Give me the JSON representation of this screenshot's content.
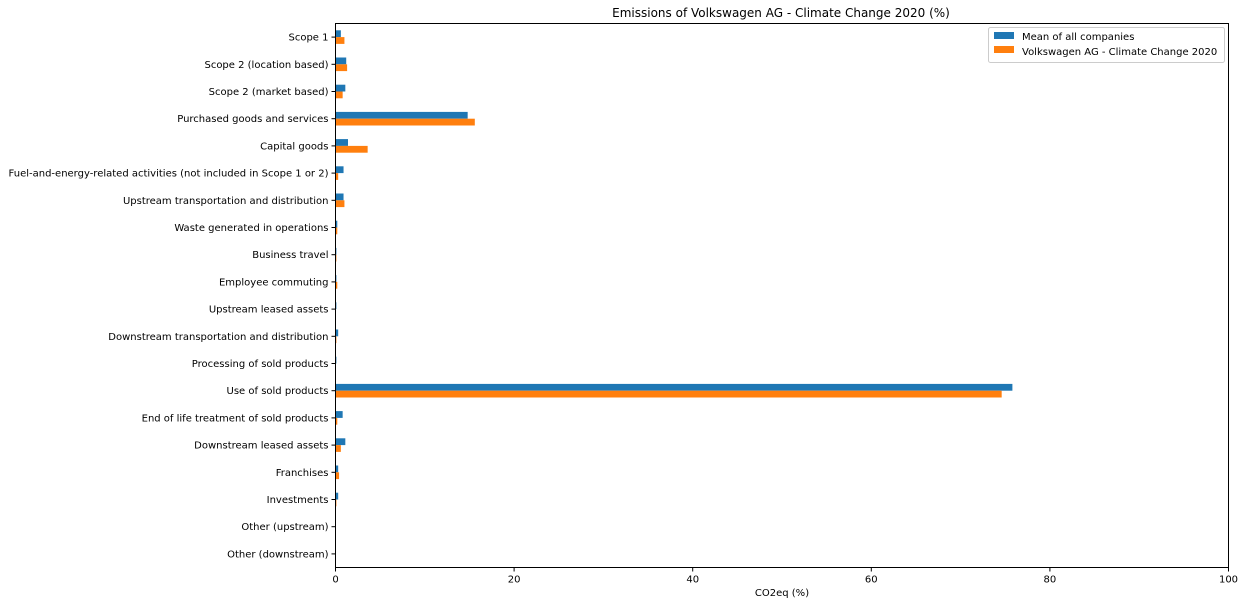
{
  "chart_data": {
    "type": "bar",
    "orientation": "horizontal",
    "title": "Emissions of Volkswagen AG - Climate Change 2020 (%)",
    "xlabel": "CO2eq (%)",
    "ylabel": "",
    "xlim": [
      0,
      100
    ],
    "xticks": [
      0,
      20,
      40,
      60,
      80,
      100
    ],
    "grid": false,
    "legend_position": "top-right",
    "categories": [
      "Scope 1",
      "Scope 2 (location based)",
      "Scope 2 (market based)",
      "Purchased goods and services",
      "Capital goods",
      "Fuel-and-energy-related activities (not included in Scope 1 or 2)",
      "Upstream transportation and distribution",
      "Waste generated in operations",
      "Business travel",
      "Employee commuting",
      "Upstream leased assets",
      "Downstream transportation and distribution",
      "Processing of sold products",
      "Use of sold products",
      "End of life treatment of sold products",
      "Downstream leased assets",
      "Franchises",
      "Investments",
      "Other (upstream)",
      "Other (downstream)"
    ],
    "series": [
      {
        "name": "Mean of all companies",
        "color": "#1f77b4",
        "values": [
          0.6,
          1.2,
          1.1,
          14.8,
          1.4,
          0.9,
          0.9,
          0.2,
          0.1,
          0.1,
          0.1,
          0.3,
          0.1,
          75.8,
          0.8,
          1.1,
          0.3,
          0.3,
          0.05,
          0.05
        ]
      },
      {
        "name": "Volkswagen AG - Climate Change 2020",
        "color": "#ff7f0e",
        "values": [
          1.0,
          1.3,
          0.8,
          15.6,
          3.6,
          0.3,
          1.0,
          0.2,
          0.1,
          0.2,
          0.05,
          0.1,
          0.05,
          74.6,
          0.2,
          0.6,
          0.4,
          0.1,
          0.0,
          0.0
        ]
      }
    ]
  }
}
